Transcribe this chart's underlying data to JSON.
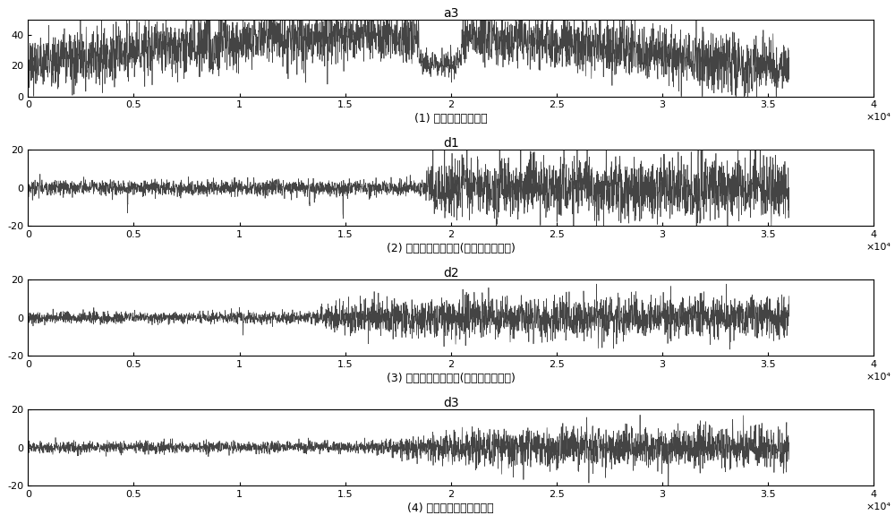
{
  "title1": "a3",
  "title2": "d1",
  "title3": "d2",
  "title4": "d3",
  "xlabel1": "(1) 阵列二次回路开路",
  "xlabel2": "(2) 阵列二次回路短路(逆变器退出运行)",
  "xlabel3": "(3) 阵列二次回路短路(逆变器正常运行)",
  "xlabel4": "(4) 阵列二次回路线路老化",
  "xlim": [
    0,
    4
  ],
  "xticks": [
    0,
    0.5,
    1,
    1.5,
    2,
    2.5,
    3,
    3.5,
    4
  ],
  "xticklabels": [
    "0",
    "0.5",
    "1",
    "1.5",
    "2",
    "2.5",
    "3",
    "3.5",
    "4"
  ],
  "xscale_label": "×10⁴",
  "ylim1": [
    0,
    50
  ],
  "yticks1": [
    0,
    20,
    40
  ],
  "ylim2": [
    -20,
    20
  ],
  "yticks2": [
    -20,
    0,
    20
  ],
  "line_color": "#444444",
  "bg_color": "#ffffff",
  "n_points": 3600,
  "figsize": [
    10.0,
    5.85
  ],
  "dpi": 100
}
